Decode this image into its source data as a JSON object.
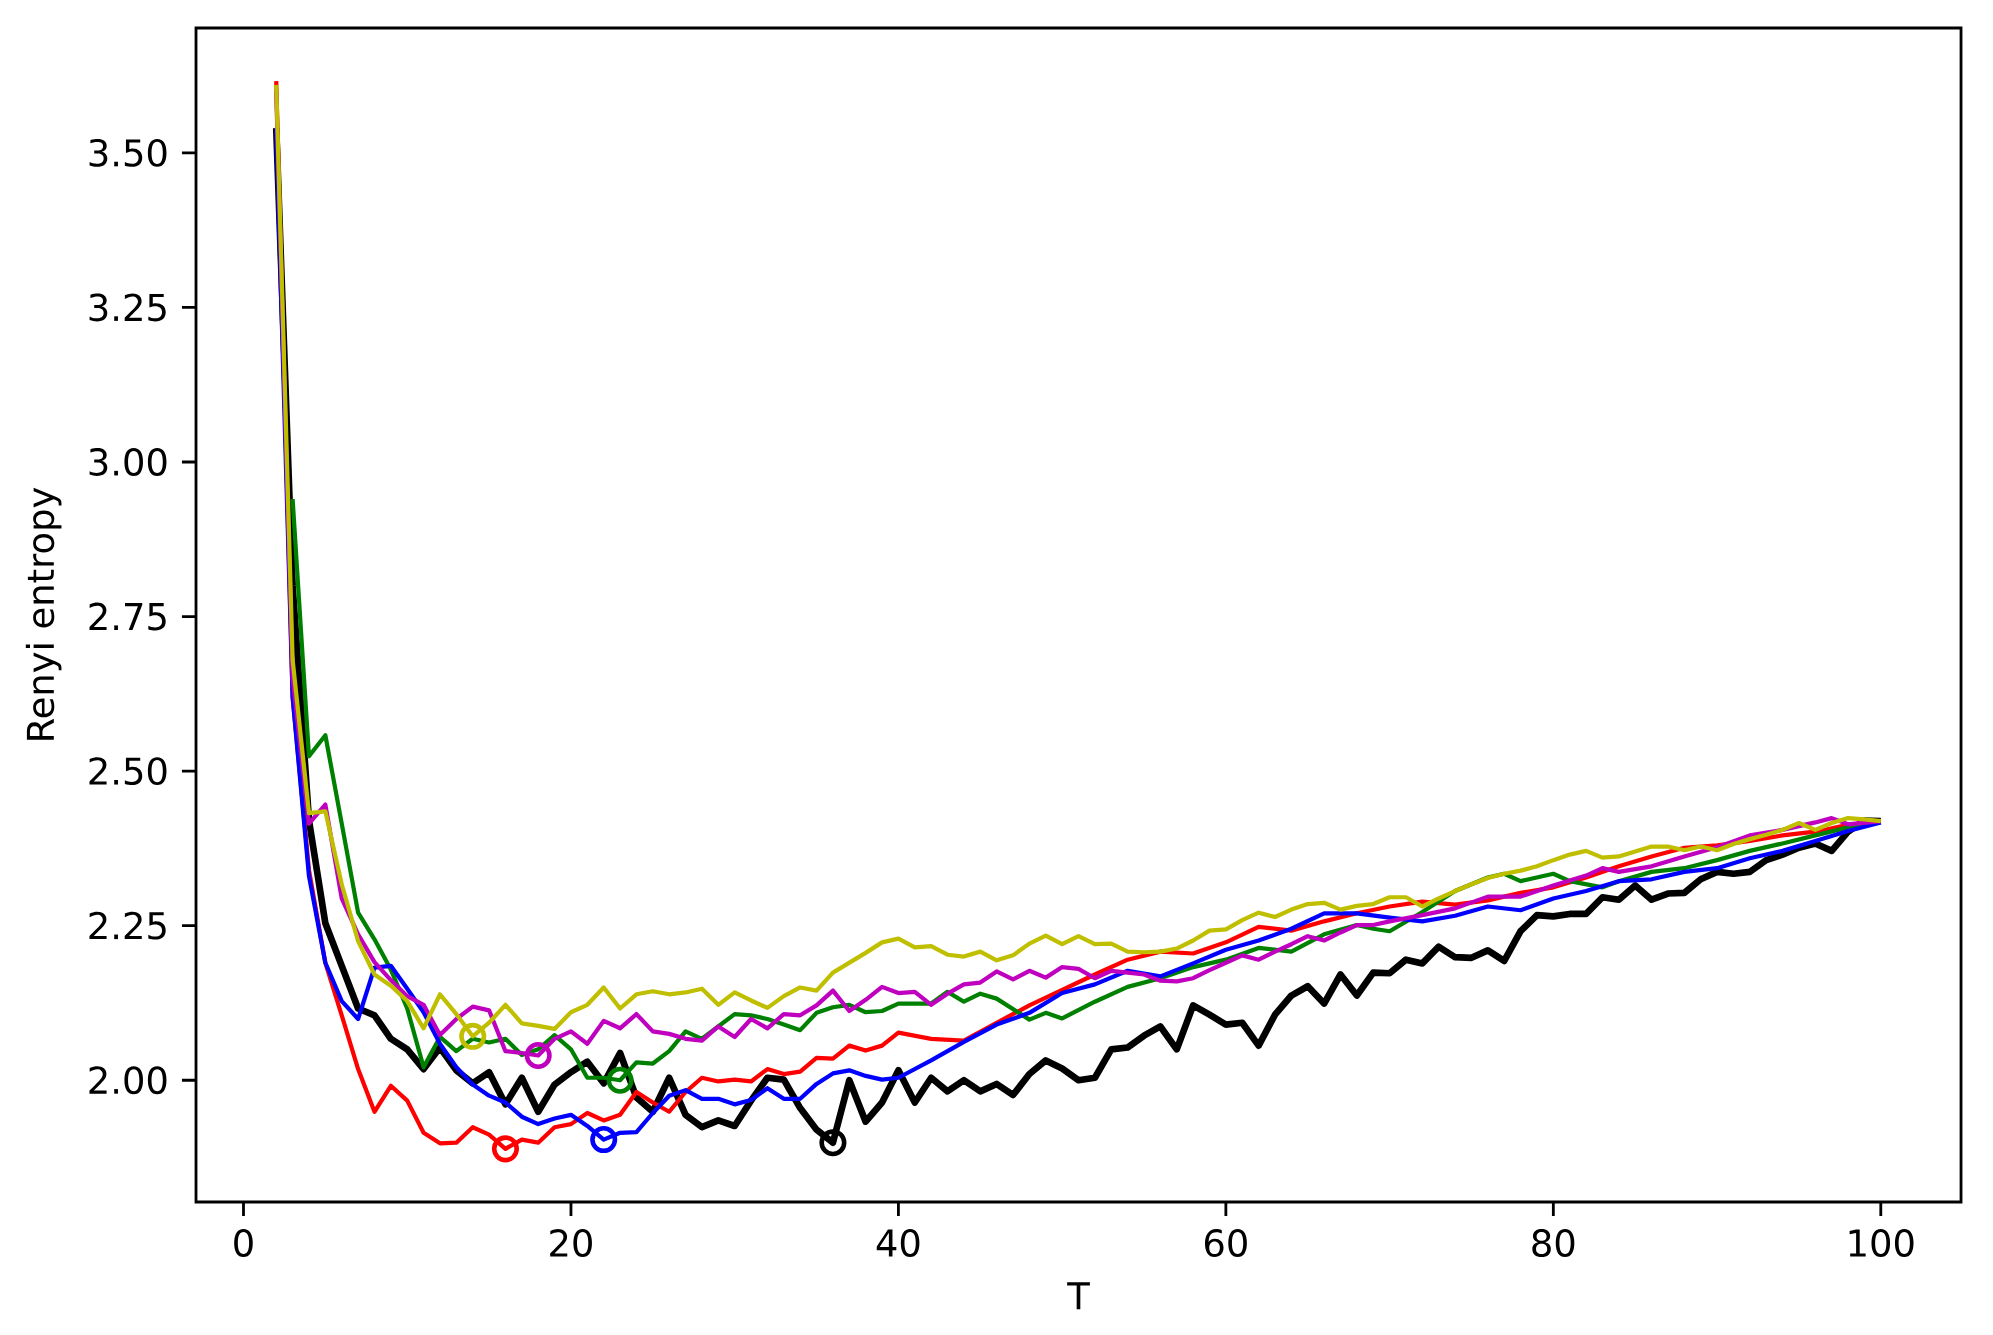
{
  "chart_data": {
    "type": "line",
    "xlabel": "T",
    "ylabel": "Renyi entropy",
    "xlim": [
      -2.9,
      104.9
    ],
    "ylim": [
      1.803,
      3.702
    ],
    "xticks": [
      0,
      20,
      40,
      60,
      80,
      100
    ],
    "yticks": [
      {
        "value": 2.0,
        "label": "2.00"
      },
      {
        "value": 2.25,
        "label": "2.25"
      },
      {
        "value": 2.5,
        "label": "2.50"
      },
      {
        "value": 2.75,
        "label": "2.75"
      },
      {
        "value": 3.0,
        "label": "3.00"
      },
      {
        "value": 3.25,
        "label": "3.25"
      },
      {
        "value": 3.5,
        "label": "3.50"
      }
    ],
    "series": [
      {
        "color": "#000000",
        "x": [
          2,
          3,
          4,
          5,
          6,
          7,
          8,
          9,
          10,
          11,
          12,
          13,
          14,
          15,
          16,
          17,
          18,
          19,
          20,
          21,
          22,
          23,
          24,
          25,
          26,
          27,
          28,
          29,
          30,
          31,
          32,
          33,
          34,
          35,
          36,
          37,
          38,
          39,
          40,
          41,
          42,
          43,
          44,
          45,
          46,
          47,
          48,
          49,
          50,
          51,
          52,
          53,
          54,
          55,
          56,
          57,
          58,
          59,
          60,
          61,
          62,
          63,
          64,
          65,
          66,
          67,
          68,
          69,
          70,
          71,
          72,
          73,
          74,
          75,
          76,
          77,
          78,
          79,
          80,
          81,
          82,
          83,
          84,
          85,
          86,
          87,
          88,
          89,
          90,
          91,
          92,
          93,
          94,
          95,
          96,
          97,
          98,
          99,
          100
        ],
        "values": [
          3.54,
          2.8,
          2.42,
          2.254,
          2.185,
          2.116,
          2.105,
          2.067,
          2.05,
          2.018,
          2.053,
          2.016,
          1.995,
          2.013,
          1.961,
          2.004,
          1.949,
          1.993,
          2.013,
          2.03,
          1.995,
          2.044,
          1.972,
          1.949,
          2.004,
          1.944,
          1.924,
          1.935,
          1.926,
          1.967,
          2.004,
          2.001,
          1.955,
          1.92,
          1.899,
          2.0,
          1.933,
          1.964,
          2.016,
          1.964,
          2.004,
          1.982,
          2.0,
          1.982,
          1.994,
          1.976,
          2.01,
          2.032,
          2.019,
          2.0,
          2.004,
          2.05,
          2.053,
          2.072,
          2.087,
          2.05,
          2.121,
          2.106,
          2.09,
          2.093,
          2.056,
          2.106,
          2.137,
          2.152,
          2.124,
          2.171,
          2.137,
          2.174,
          2.173,
          2.195,
          2.189,
          2.216,
          2.199,
          2.198,
          2.21,
          2.193,
          2.241,
          2.267,
          2.265,
          2.269,
          2.269,
          2.296,
          2.292,
          2.315,
          2.292,
          2.302,
          2.303,
          2.325,
          2.337,
          2.334,
          2.337,
          2.356,
          2.365,
          2.376,
          2.383,
          2.371,
          2.402,
          2.42,
          2.419
        ]
      },
      {
        "color": "#ff0000",
        "x": [
          2,
          3,
          4,
          5,
          6,
          7,
          8,
          9,
          10,
          11,
          12,
          13,
          14,
          15,
          16,
          17,
          18,
          19,
          20,
          21,
          22,
          23,
          24,
          25,
          26,
          27,
          28,
          29,
          30,
          31,
          32,
          33,
          34,
          35,
          36,
          37,
          38,
          39,
          40,
          42,
          44,
          46,
          48,
          50,
          52,
          54,
          56,
          58,
          60,
          62,
          64,
          66,
          68,
          70,
          72,
          74,
          76,
          78,
          80,
          82,
          84,
          86,
          88,
          90,
          92,
          94,
          96,
          98,
          100
        ],
        "values": [
          3.616,
          2.62,
          2.34,
          2.19,
          2.105,
          2.018,
          1.949,
          1.991,
          1.967,
          1.915,
          1.898,
          1.899,
          1.924,
          1.912,
          1.889,
          1.904,
          1.899,
          1.924,
          1.929,
          1.947,
          1.935,
          1.944,
          1.981,
          1.964,
          1.949,
          1.981,
          2.004,
          1.998,
          2.001,
          1.998,
          2.018,
          2.01,
          2.014,
          2.036,
          2.035,
          2.056,
          2.048,
          2.056,
          2.077,
          2.067,
          2.064,
          2.093,
          2.121,
          2.146,
          2.171,
          2.195,
          2.208,
          2.205,
          2.223,
          2.248,
          2.242,
          2.257,
          2.27,
          2.281,
          2.289,
          2.284,
          2.291,
          2.303,
          2.312,
          2.328,
          2.346,
          2.362,
          2.376,
          2.38,
          2.387,
          2.396,
          2.402,
          2.413,
          2.419
        ]
      },
      {
        "color": "#008000",
        "x": [
          3,
          4,
          5,
          6,
          7,
          8,
          9,
          10,
          11,
          12,
          13,
          14,
          15,
          16,
          17,
          18,
          19,
          20,
          21,
          22,
          23,
          24,
          25,
          26,
          27,
          28,
          29,
          30,
          31,
          32,
          33,
          34,
          35,
          36,
          37,
          38,
          39,
          40,
          42,
          43,
          44,
          45,
          46,
          48,
          49,
          50,
          52,
          54,
          56,
          58,
          60,
          62,
          64,
          66,
          68,
          69,
          70,
          72,
          74,
          76,
          77,
          78,
          80,
          81,
          83,
          84,
          86,
          88,
          90,
          92,
          94,
          96,
          98,
          100
        ],
        "values": [
          2.94,
          2.524,
          2.558,
          2.415,
          2.271,
          2.228,
          2.179,
          2.116,
          2.021,
          2.07,
          2.047,
          2.067,
          2.061,
          2.067,
          2.041,
          2.05,
          2.073,
          2.05,
          2.004,
          2.004,
          2.0,
          2.029,
          2.027,
          2.047,
          2.079,
          2.067,
          2.087,
          2.107,
          2.105,
          2.099,
          2.09,
          2.081,
          2.109,
          2.118,
          2.122,
          2.11,
          2.112,
          2.124,
          2.124,
          2.143,
          2.127,
          2.14,
          2.132,
          2.098,
          2.109,
          2.1,
          2.127,
          2.151,
          2.165,
          2.183,
          2.195,
          2.214,
          2.208,
          2.236,
          2.251,
          2.245,
          2.241,
          2.272,
          2.306,
          2.328,
          2.334,
          2.322,
          2.334,
          2.322,
          2.312,
          2.322,
          2.337,
          2.343,
          2.356,
          2.371,
          2.383,
          2.396,
          2.409,
          2.419
        ]
      },
      {
        "color": "#0000ff",
        "x": [
          2,
          3,
          4,
          5,
          6,
          7,
          8,
          9,
          10,
          11,
          12,
          13,
          14,
          15,
          16,
          17,
          18,
          19,
          20,
          21,
          22,
          23,
          24,
          25,
          26,
          27,
          28,
          29,
          30,
          31,
          32,
          33,
          34,
          35,
          36,
          37,
          38,
          39,
          40,
          42,
          44,
          46,
          48,
          50,
          52,
          54,
          56,
          58,
          60,
          62,
          64,
          66,
          68,
          70,
          72,
          74,
          76,
          78,
          80,
          82,
          84,
          86,
          88,
          90,
          92,
          94,
          96,
          98,
          100
        ],
        "values": [
          3.54,
          2.62,
          2.33,
          2.19,
          2.128,
          2.099,
          2.182,
          2.185,
          2.148,
          2.11,
          2.059,
          2.021,
          1.993,
          1.975,
          1.964,
          1.941,
          1.929,
          1.938,
          1.944,
          1.926,
          1.904,
          1.915,
          1.916,
          1.947,
          1.975,
          1.984,
          1.97,
          1.97,
          1.961,
          1.968,
          1.987,
          1.97,
          1.97,
          1.994,
          2.011,
          2.016,
          2.007,
          2.001,
          2.004,
          2.032,
          2.062,
          2.09,
          2.109,
          2.141,
          2.155,
          2.177,
          2.168,
          2.189,
          2.211,
          2.226,
          2.245,
          2.27,
          2.27,
          2.263,
          2.257,
          2.266,
          2.281,
          2.275,
          2.294,
          2.306,
          2.322,
          2.325,
          2.337,
          2.343,
          2.359,
          2.371,
          2.387,
          2.403,
          2.417
        ]
      },
      {
        "color": "#bf00bf",
        "x": [
          2,
          3,
          4,
          5,
          6,
          7,
          8,
          9,
          10,
          11,
          12,
          13,
          14,
          15,
          16,
          17,
          18,
          19,
          20,
          21,
          22,
          23,
          24,
          25,
          26,
          27,
          28,
          29,
          30,
          31,
          32,
          33,
          34,
          35,
          36,
          37,
          38,
          39,
          40,
          41,
          42,
          43,
          44,
          45,
          46,
          47,
          48,
          49,
          50,
          51,
          52,
          53,
          54,
          55,
          56,
          57,
          58,
          59,
          60,
          61,
          62,
          63,
          64,
          65,
          66,
          67,
          68,
          69,
          70,
          72,
          74,
          76,
          78,
          80,
          82,
          83,
          84,
          86,
          88,
          90,
          92,
          94,
          96,
          97,
          98,
          100
        ],
        "values": [
          3.6,
          2.65,
          2.415,
          2.446,
          2.294,
          2.236,
          2.191,
          2.162,
          2.136,
          2.122,
          2.073,
          2.099,
          2.119,
          2.113,
          2.047,
          2.044,
          2.04,
          2.067,
          2.079,
          2.059,
          2.096,
          2.084,
          2.107,
          2.079,
          2.075,
          2.067,
          2.064,
          2.087,
          2.07,
          2.099,
          2.084,
          2.107,
          2.105,
          2.121,
          2.145,
          2.112,
          2.13,
          2.151,
          2.141,
          2.143,
          2.122,
          2.14,
          2.155,
          2.158,
          2.176,
          2.163,
          2.177,
          2.166,
          2.183,
          2.18,
          2.165,
          2.177,
          2.174,
          2.171,
          2.161,
          2.16,
          2.165,
          2.178,
          2.19,
          2.202,
          2.195,
          2.208,
          2.22,
          2.233,
          2.226,
          2.239,
          2.251,
          2.251,
          2.257,
          2.267,
          2.278,
          2.297,
          2.297,
          2.315,
          2.331,
          2.343,
          2.337,
          2.346,
          2.362,
          2.377,
          2.396,
          2.405,
          2.417,
          2.424,
          2.414,
          2.419
        ]
      },
      {
        "color": "#bfbf00",
        "x": [
          2,
          3,
          4,
          5,
          6,
          7,
          8,
          9,
          10,
          11,
          12,
          13,
          14,
          15,
          16,
          17,
          18,
          19,
          20,
          21,
          22,
          23,
          24,
          25,
          26,
          27,
          28,
          29,
          30,
          31,
          32,
          33,
          34,
          35,
          36,
          37,
          38,
          39,
          40,
          41,
          42,
          43,
          44,
          45,
          46,
          47,
          48,
          49,
          50,
          51,
          52,
          53,
          54,
          55,
          56,
          57,
          58,
          59,
          60,
          61,
          62,
          63,
          64,
          65,
          66,
          67,
          68,
          69,
          70,
          71,
          72,
          73,
          74,
          75,
          76,
          77,
          78,
          79,
          80,
          81,
          82,
          83,
          84,
          85,
          86,
          87,
          88,
          89,
          90,
          91,
          92,
          93,
          94,
          95,
          96,
          97,
          98,
          99,
          100
        ],
        "values": [
          3.61,
          2.68,
          2.432,
          2.435,
          2.317,
          2.225,
          2.171,
          2.153,
          2.128,
          2.084,
          2.139,
          2.107,
          2.071,
          2.093,
          2.122,
          2.092,
          2.088,
          2.083,
          2.11,
          2.122,
          2.15,
          2.116,
          2.139,
          2.144,
          2.139,
          2.142,
          2.148,
          2.122,
          2.142,
          2.129,
          2.117,
          2.136,
          2.15,
          2.145,
          2.174,
          2.19,
          2.206,
          2.223,
          2.229,
          2.215,
          2.217,
          2.203,
          2.2,
          2.208,
          2.194,
          2.202,
          2.221,
          2.234,
          2.22,
          2.233,
          2.22,
          2.221,
          2.208,
          2.207,
          2.208,
          2.213,
          2.226,
          2.242,
          2.244,
          2.259,
          2.271,
          2.264,
          2.276,
          2.285,
          2.287,
          2.276,
          2.282,
          2.285,
          2.296,
          2.296,
          2.281,
          2.294,
          2.306,
          2.317,
          2.327,
          2.334,
          2.339,
          2.346,
          2.356,
          2.365,
          2.371,
          2.36,
          2.362,
          2.37,
          2.378,
          2.378,
          2.372,
          2.378,
          2.372,
          2.382,
          2.39,
          2.397,
          2.405,
          2.416,
          2.405,
          2.416,
          2.424,
          2.422,
          2.419
        ]
      },
      {
        "type": "scatter",
        "marker": "circle",
        "x": [
          36,
          16,
          23,
          22,
          18,
          14
        ],
        "values": [
          1.899,
          1.889,
          2.0,
          1.904,
          2.04,
          2.071
        ],
        "colors": [
          "#000000",
          "#ff0000",
          "#008000",
          "#0000ff",
          "#bf00bf",
          "#bfbf00"
        ]
      }
    ]
  }
}
